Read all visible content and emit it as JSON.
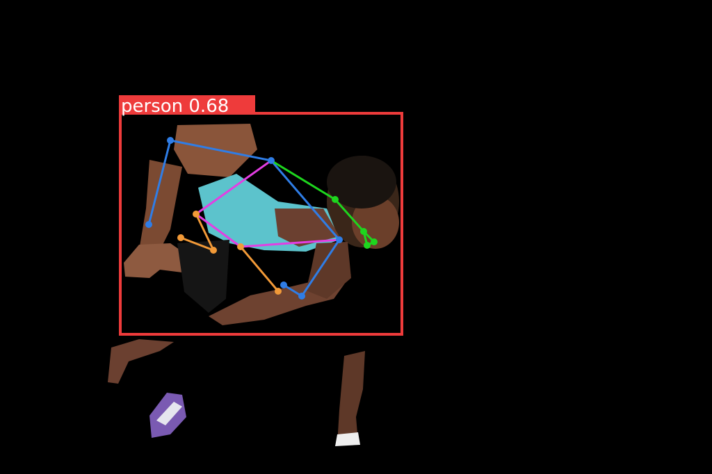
{
  "detection": {
    "label": "person 0.68",
    "class_name": "person",
    "confidence": 0.68,
    "box_color": "#ee3b3b"
  },
  "pose": {
    "colors": {
      "blue": "#2f7de6",
      "orange": "#f29a38",
      "magenta": "#e33ee3",
      "green": "#1ed61e"
    }
  },
  "scene": {
    "background": "#000000",
    "skin": "#7a4a33",
    "shirt": "#5cc3cc",
    "shorts": "#141414",
    "shoe": "#7a5ab2"
  }
}
